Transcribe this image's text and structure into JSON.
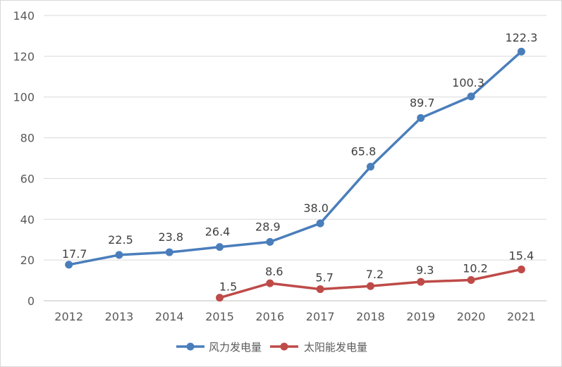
{
  "chart_data": {
    "type": "line",
    "title": "",
    "xlabel": "",
    "ylabel": "",
    "categories": [
      "2012",
      "2013",
      "2014",
      "2015",
      "2016",
      "2017",
      "2018",
      "2019",
      "2020",
      "2021"
    ],
    "ylim": [
      0,
      140
    ],
    "yticks": [
      "0",
      "20",
      "40",
      "60",
      "80",
      "100",
      "120",
      "140"
    ],
    "grid": "horizontal",
    "legend": "bottom",
    "series": [
      {
        "name": "风力发电量",
        "color": "#4a7ebb",
        "values": [
          17.7,
          22.5,
          23.8,
          26.4,
          28.9,
          38.0,
          65.8,
          89.7,
          100.3,
          122.3
        ],
        "labels": [
          "17.7",
          "22.5",
          "23.8",
          "26.4",
          "28.9",
          "38.0",
          "65.8",
          "89.7",
          "100.3",
          "122.3"
        ]
      },
      {
        "name": "太阳能发电量",
        "color": "#be4b48",
        "values": [
          null,
          null,
          null,
          1.5,
          8.6,
          5.7,
          7.2,
          9.3,
          10.2,
          15.4
        ],
        "labels": [
          "",
          "",
          "",
          "1.5",
          "8.6",
          "5.7",
          "7.2",
          "9.3",
          "10.2",
          "15.4"
        ]
      }
    ]
  }
}
